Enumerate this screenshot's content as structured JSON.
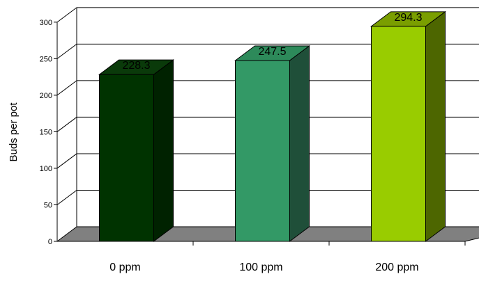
{
  "chart_data": {
    "type": "bar",
    "categories": [
      "0 ppm",
      "100 ppm",
      "200 ppm"
    ],
    "values": [
      228.3,
      247.5,
      294.3
    ],
    "data_labels": [
      "228.3",
      "247.5",
      "294.3"
    ],
    "ylabel": "Buds per pot",
    "xlabel": "",
    "ylim": [
      0,
      300
    ],
    "yticks": [
      0,
      50,
      100,
      150,
      200,
      250,
      300
    ],
    "grid": true,
    "three_d": true,
    "colors": {
      "bars": [
        {
          "front": "#003300",
          "side": "#002200",
          "top": "#0a3a0a"
        },
        {
          "front": "#339966",
          "side": "#1f4f39",
          "top": "#2d8a5a"
        },
        {
          "front": "#99cc00",
          "side": "#4d6600",
          "top": "#7a9e00"
        }
      ],
      "floor": "#808080",
      "grid": "#000000",
      "back_wall": "#ffffff"
    }
  }
}
